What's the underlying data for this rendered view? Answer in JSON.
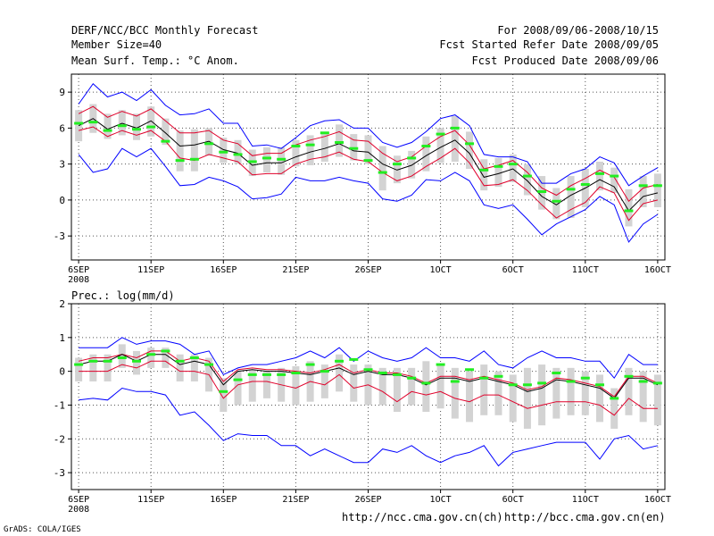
{
  "header": {
    "line1_left": "DERF/NCC/BCC Monthly Forecast",
    "line2_left": "Member Size=40",
    "line3_left": "Mean Surf. Temp.: °C Anom.",
    "line1_right": "For 2008/09/06-2008/10/15",
    "line2_right": "Fcst Started Refer Date 2008/09/05",
    "line3_right": "Fcst Produced Date 2008/09/06"
  },
  "footer": {
    "grads_credit": "GrADS: COLA/IGES",
    "url_ncc": "http://ncc.cma.gov.cn(ch)",
    "url_bcc": "http://bcc.cma.gov.cn(en)"
  },
  "colors": {
    "mean": "#000000",
    "spread": "#e0002a",
    "range": "#0000ff",
    "median": "#22ee22",
    "box": "#d3d3d3",
    "grid": "#555555"
  },
  "chart_data": [
    {
      "type": "line",
      "title": "Mean Surf. Temp.: °C Anom.",
      "x_tick_labels": [
        "6SEP",
        "11SEP",
        "16SEP",
        "21SEP",
        "26SEP",
        "1OCT",
        "6OCT",
        "11OCT",
        "16OCT"
      ],
      "x_sub_label": "2008",
      "x_tick_days": [
        0,
        5,
        10,
        15,
        20,
        25,
        30,
        35,
        40
      ],
      "y_ticks": [
        -3,
        0,
        3,
        6,
        9
      ],
      "ylim": [
        -5,
        10.5
      ],
      "xlim": [
        -0.5,
        40.5
      ],
      "series": [
        {
          "name": "ensemble mean",
          "values": [
            6.2,
            6.8,
            5.9,
            6.4,
            6.0,
            6.6,
            5.6,
            4.5,
            4.6,
            4.9,
            4.2,
            3.9,
            2.9,
            3.1,
            3.1,
            3.6,
            4.0,
            4.3,
            4.7,
            4.1,
            4.0,
            3.0,
            2.5,
            2.9,
            3.7,
            4.4,
            5.0,
            3.9,
            1.9,
            2.2,
            2.6,
            1.6,
            0.3,
            -0.4,
            0.4,
            1.0,
            1.7,
            1.1,
            -0.9,
            0.3,
            0.6
          ]
        },
        {
          "name": "mean + 1 std",
          "values": [
            7.2,
            7.8,
            6.9,
            7.4,
            7.0,
            7.6,
            6.6,
            5.6,
            5.6,
            5.8,
            5.0,
            4.7,
            3.7,
            3.9,
            3.9,
            4.6,
            5.0,
            5.3,
            5.7,
            5.0,
            4.9,
            3.9,
            3.2,
            3.6,
            4.5,
            5.3,
            5.8,
            4.6,
            2.6,
            2.9,
            3.3,
            2.3,
            1.0,
            0.4,
            1.2,
            1.8,
            2.5,
            1.9,
            -0.1,
            1.0,
            1.3
          ]
        },
        {
          "name": "mean - 1 std",
          "values": [
            5.8,
            6.1,
            5.3,
            5.8,
            5.4,
            5.8,
            4.9,
            3.5,
            3.3,
            3.8,
            3.5,
            3.2,
            2.1,
            2.2,
            2.2,
            3.0,
            3.4,
            3.6,
            4.0,
            3.4,
            3.2,
            2.3,
            1.6,
            2.0,
            2.8,
            3.5,
            4.3,
            3.1,
            1.2,
            1.3,
            1.7,
            0.8,
            -0.4,
            -1.5,
            -0.8,
            -0.2,
            1.1,
            0.6,
            -1.7,
            -0.3,
            0.0
          ]
        },
        {
          "name": "ensemble max",
          "values": [
            8.0,
            9.7,
            8.6,
            9.0,
            8.3,
            9.2,
            7.9,
            7.1,
            7.2,
            7.6,
            6.4,
            6.4,
            4.5,
            4.6,
            4.3,
            5.2,
            6.2,
            6.6,
            6.7,
            6.0,
            6.0,
            4.8,
            4.4,
            4.8,
            5.7,
            6.8,
            7.1,
            6.2,
            3.8,
            3.6,
            3.6,
            3.2,
            1.4,
            1.4,
            2.2,
            2.6,
            3.6,
            3.1,
            1.2,
            2.0,
            2.7
          ]
        },
        {
          "name": "ensemble min",
          "values": [
            3.8,
            2.3,
            2.6,
            4.3,
            3.6,
            4.3,
            2.8,
            1.2,
            1.3,
            1.9,
            1.6,
            1.1,
            0.1,
            0.2,
            0.5,
            1.9,
            1.6,
            1.6,
            1.9,
            1.6,
            1.4,
            0.1,
            -0.1,
            0.4,
            1.7,
            1.6,
            2.3,
            1.6,
            -0.4,
            -0.7,
            -0.4,
            -1.6,
            -2.9,
            -2.0,
            -1.4,
            -0.8,
            0.3,
            -0.4,
            -3.5,
            -2.0,
            -1.2
          ]
        },
        {
          "name": "ensemble median",
          "values": [
            6.4,
            6.5,
            5.8,
            6.2,
            5.9,
            6.1,
            4.9,
            3.3,
            3.4,
            4.7,
            4.0,
            3.8,
            3.2,
            3.5,
            3.4,
            4.5,
            4.6,
            5.6,
            4.8,
            4.3,
            3.3,
            2.3,
            3.0,
            3.5,
            4.5,
            5.5,
            6.0,
            4.7,
            2.5,
            2.8,
            3.0,
            2.0,
            0.7,
            -0.1,
            0.9,
            1.3,
            2.2,
            2.0,
            -0.9,
            1.2,
            1.2
          ]
        },
        {
          "name": "box upper",
          "values": [
            7.5,
            8.0,
            7.2,
            7.5,
            7.2,
            7.8,
            6.8,
            5.8,
            5.9,
            6.0,
            5.2,
            5.0,
            4.2,
            4.4,
            4.4,
            5.0,
            5.4,
            5.6,
            6.3,
            5.5,
            5.4,
            4.5,
            3.7,
            4.1,
            5.3,
            6.0,
            7.0,
            5.7,
            3.4,
            3.5,
            3.8,
            3.0,
            2.0,
            1.0,
            2.0,
            2.6,
            3.2,
            2.7,
            0.9,
            2.0,
            2.2
          ]
        },
        {
          "name": "box lower",
          "values": [
            4.9,
            5.6,
            5.1,
            5.4,
            5.0,
            5.3,
            4.6,
            2.4,
            2.4,
            3.7,
            3.1,
            3.0,
            2.0,
            2.3,
            2.1,
            2.8,
            2.9,
            3.2,
            3.6,
            3.3,
            3.0,
            0.8,
            1.4,
            1.8,
            2.4,
            3.1,
            3.2,
            2.6,
            0.8,
            1.1,
            1.5,
            0.4,
            -0.8,
            -1.6,
            -1.5,
            -0.6,
            0.8,
            0.6,
            -2.2,
            -0.6,
            -0.6
          ]
        }
      ]
    },
    {
      "type": "line",
      "title": "Prec.: log(mm/d)",
      "x_tick_labels": [
        "6SEP",
        "11SEP",
        "16SEP",
        "21SEP",
        "26SEP",
        "1OCT",
        "6OCT",
        "11OCT",
        "16OCT"
      ],
      "x_sub_label": "2008",
      "x_tick_days": [
        0,
        5,
        10,
        15,
        20,
        25,
        30,
        35,
        40
      ],
      "y_ticks": [
        -3,
        -2,
        -1,
        0,
        1,
        2
      ],
      "ylim": [
        -3.5,
        2
      ],
      "xlim": [
        -0.5,
        40.5
      ],
      "series": [
        {
          "name": "ensemble mean",
          "values": [
            0.2,
            0.3,
            0.3,
            0.5,
            0.3,
            0.5,
            0.5,
            0.2,
            0.3,
            0.2,
            -0.4,
            0.0,
            0.05,
            0.0,
            0.0,
            -0.05,
            -0.1,
            0.0,
            0.1,
            -0.1,
            0.0,
            -0.1,
            -0.1,
            -0.2,
            -0.4,
            -0.2,
            -0.2,
            -0.3,
            -0.2,
            -0.3,
            -0.4,
            -0.6,
            -0.5,
            -0.25,
            -0.3,
            -0.4,
            -0.5,
            -0.8,
            -0.2,
            -0.2,
            -0.4
          ]
        },
        {
          "name": "mean + 1 std",
          "values": [
            0.3,
            0.4,
            0.4,
            0.5,
            0.4,
            0.6,
            0.6,
            0.3,
            0.4,
            0.3,
            -0.3,
            0.05,
            0.1,
            0.05,
            0.05,
            0.0,
            -0.05,
            0.05,
            0.2,
            -0.05,
            0.05,
            -0.05,
            -0.05,
            -0.15,
            -0.35,
            -0.15,
            -0.15,
            -0.25,
            -0.15,
            -0.25,
            -0.35,
            -0.55,
            -0.45,
            -0.2,
            -0.25,
            -0.35,
            -0.45,
            -0.75,
            -0.15,
            -0.15,
            -0.35
          ]
        },
        {
          "name": "mean - 1 std",
          "values": [
            0.0,
            0.0,
            0.0,
            0.2,
            0.1,
            0.3,
            0.3,
            0.0,
            0.0,
            -0.1,
            -0.8,
            -0.4,
            -0.3,
            -0.3,
            -0.4,
            -0.5,
            -0.3,
            -0.4,
            -0.1,
            -0.5,
            -0.4,
            -0.6,
            -0.9,
            -0.6,
            -0.7,
            -0.6,
            -0.8,
            -0.9,
            -0.7,
            -0.7,
            -0.9,
            -1.1,
            -1.0,
            -0.9,
            -0.9,
            -0.9,
            -1.0,
            -1.3,
            -0.8,
            -1.1,
            -1.1
          ]
        },
        {
          "name": "ensemble max",
          "values": [
            0.7,
            0.7,
            0.7,
            1.0,
            0.8,
            0.9,
            0.9,
            0.8,
            0.5,
            0.6,
            -0.1,
            0.1,
            0.2,
            0.2,
            0.3,
            0.4,
            0.6,
            0.4,
            0.7,
            0.3,
            0.6,
            0.4,
            0.3,
            0.4,
            0.7,
            0.4,
            0.4,
            0.3,
            0.6,
            0.2,
            0.1,
            0.4,
            0.6,
            0.4,
            0.4,
            0.3,
            0.3,
            -0.2,
            0.5,
            0.2,
            0.2
          ]
        },
        {
          "name": "ensemble min",
          "values": [
            -0.85,
            -0.8,
            -0.85,
            -0.5,
            -0.6,
            -0.6,
            -0.7,
            -1.3,
            -1.2,
            -1.6,
            -2.05,
            -1.85,
            -1.9,
            -1.9,
            -2.2,
            -2.2,
            -2.5,
            -2.3,
            -2.5,
            -2.7,
            -2.7,
            -2.3,
            -2.4,
            -2.2,
            -2.5,
            -2.7,
            -2.5,
            -2.4,
            -2.2,
            -2.8,
            -2.4,
            -2.3,
            -2.2,
            -2.1,
            -2.1,
            -2.1,
            -2.6,
            -2.0,
            -1.9,
            -2.3,
            -2.2
          ]
        },
        {
          "name": "ensemble median",
          "values": [
            0.2,
            0.3,
            0.3,
            0.4,
            0.3,
            0.5,
            0.6,
            0.3,
            0.4,
            0.2,
            -0.6,
            -0.25,
            -0.1,
            -0.1,
            -0.1,
            -0.05,
            0.2,
            0.0,
            0.3,
            0.35,
            0.05,
            -0.05,
            -0.1,
            -0.2,
            -0.35,
            0.2,
            -0.3,
            0.05,
            -0.2,
            -0.15,
            -0.4,
            -0.4,
            -0.35,
            -0.05,
            -0.3,
            -0.2,
            -0.4,
            -0.8,
            -0.15,
            -0.3,
            -0.35
          ]
        },
        {
          "name": "box upper",
          "values": [
            0.4,
            0.5,
            0.5,
            0.8,
            0.6,
            0.7,
            0.7,
            0.5,
            0.5,
            0.4,
            -0.2,
            0.0,
            0.05,
            0.0,
            0.1,
            0.15,
            0.3,
            0.2,
            0.5,
            0.2,
            0.2,
            0.1,
            0.1,
            0.1,
            0.3,
            0.2,
            0.1,
            0.0,
            0.2,
            0.0,
            -0.1,
            0.1,
            0.2,
            0.1,
            0.1,
            0.0,
            -0.1,
            -0.5,
            0.1,
            0.0,
            -0.1
          ]
        },
        {
          "name": "box lower",
          "values": [
            -0.3,
            -0.3,
            -0.3,
            0.1,
            -0.1,
            0.1,
            0.1,
            -0.3,
            -0.3,
            -0.6,
            -1.2,
            -1.0,
            -0.9,
            -0.8,
            -0.9,
            -1.0,
            -0.9,
            -0.8,
            -0.6,
            -0.9,
            -1.0,
            -1.0,
            -1.2,
            -1.0,
            -1.2,
            -1.1,
            -1.4,
            -1.5,
            -1.3,
            -1.3,
            -1.5,
            -1.7,
            -1.6,
            -1.4,
            -1.3,
            -1.3,
            -1.5,
            -1.7,
            -1.3,
            -1.5,
            -1.6
          ]
        }
      ]
    }
  ]
}
